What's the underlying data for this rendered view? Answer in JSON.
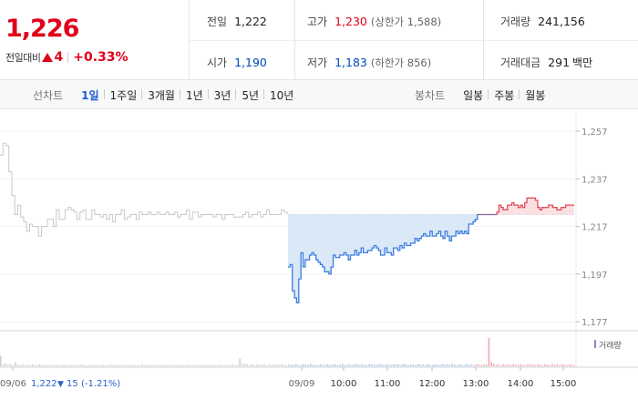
{
  "quote": {
    "price": "1,226",
    "change_label": "전일대비",
    "change_value": "4",
    "change_percent": "+0.33%",
    "prev_label": "전일",
    "prev_value": "1,222",
    "high_label": "고가",
    "high_value": "1,230",
    "upper_limit": "(상한가 1,588)",
    "volume_label": "거래량",
    "volume_value": "241,156",
    "open_label": "시가",
    "open_value": "1,190",
    "low_label": "저가",
    "low_value": "1,183",
    "lower_limit": "(하한가 856)",
    "amount_label": "거래대금",
    "amount_value": "291",
    "amount_unit": "백만",
    "colors": {
      "up": "#e0001b",
      "down": "#0049b7"
    }
  },
  "period_tabs": {
    "label": "선차트",
    "items": [
      "1일",
      "1주일",
      "3개월",
      "1년",
      "3년",
      "5년",
      "10년"
    ],
    "selected": "1일"
  },
  "candle_tabs": {
    "label": "봉차트",
    "items": [
      "일봉",
      "주봉",
      "월봉"
    ]
  },
  "chart_data": {
    "type": "line",
    "y_ticks": [
      "1,257",
      "1,237",
      "1,217",
      "1,197",
      "1,177"
    ],
    "y_tick_values": [
      1257,
      1237,
      1217,
      1197,
      1177
    ],
    "ylim": [
      1174,
      1262
    ],
    "reference_price": 1222,
    "x_labels": [
      "09/06",
      "09/09",
      "10:00",
      "11:00",
      "12:00",
      "13:00",
      "14:00",
      "15:00"
    ],
    "prev_day_note": {
      "date": "09/06",
      "close": "1,222",
      "arrow": "▼",
      "change": "15",
      "percent": "(-1.21%)"
    },
    "volume_legend": "거래량",
    "series": [
      {
        "period": "09/06",
        "values": [
          1247,
          1252,
          1251,
          1240,
          1230,
          1222,
          1226,
          1221,
          1219,
          1215,
          1218,
          1217,
          1217,
          1213,
          1217,
          1217,
          1220,
          1220,
          1217,
          1224,
          1220,
          1220,
          1224,
          1225,
          1224,
          1223,
          1220,
          1223,
          1224,
          1220,
          1220,
          1224,
          1222,
          1222,
          1221,
          1222,
          1220,
          1222,
          1219,
          1222,
          1222,
          1224,
          1220,
          1221,
          1222,
          1222,
          1220,
          1223,
          1222,
          1222,
          1223,
          1222,
          1222,
          1223,
          1222,
          1222,
          1223,
          1222,
          1222,
          1223,
          1221,
          1222,
          1222,
          1224,
          1220,
          1223,
          1223,
          1221,
          1222,
          1222,
          1222,
          1222,
          1221,
          1222,
          1222,
          1220,
          1222,
          1222,
          1222,
          1221,
          1221,
          1221,
          1222,
          1223,
          1221,
          1222,
          1222,
          1223,
          1221,
          1222,
          1224,
          1222,
          1222,
          1222,
          1222,
          1224,
          1223,
          1222
        ]
      },
      {
        "period": "09/09",
        "values": [
          1200,
          1201,
          1190,
          1187,
          1185,
          1195,
          1206,
          1200,
          1203,
          1203,
          1205,
          1206,
          1205,
          1203,
          1202,
          1201,
          1200,
          1198,
          1198,
          1197,
          1200,
          1205,
          1204,
          1204,
          1205,
          1205,
          1206,
          1205,
          1203,
          1205,
          1205,
          1207,
          1205,
          1206,
          1208,
          1206,
          1206,
          1207,
          1207,
          1208,
          1209,
          1208,
          1207,
          1205,
          1205,
          1208,
          1206,
          1206,
          1205,
          1208,
          1208,
          1207,
          1209,
          1208,
          1210,
          1209,
          1209,
          1210,
          1210,
          1212,
          1211,
          1212,
          1213,
          1214,
          1213,
          1213,
          1215,
          1213,
          1213,
          1214,
          1215,
          1213,
          1212,
          1215,
          1213,
          1211,
          1213,
          1213,
          1215,
          1214,
          1215,
          1214,
          1215,
          1214,
          1218,
          1218,
          1219,
          1220,
          1222,
          1222,
          1222,
          1222,
          1222,
          1222,
          1222,
          1222,
          1222,
          1223,
          1226,
          1225,
          1224,
          1224,
          1226,
          1226,
          1227,
          1226,
          1226,
          1225,
          1226,
          1225,
          1227,
          1229,
          1229,
          1229,
          1229,
          1228,
          1225,
          1224,
          1225,
          1225,
          1225,
          1226,
          1226,
          1225,
          1225,
          1224,
          1224,
          1225,
          1225,
          1226,
          1226,
          1226,
          1226,
          1226
        ]
      }
    ],
    "volume": [
      30,
      5,
      8,
      4,
      6,
      3,
      12,
      4,
      3,
      5,
      2,
      4,
      3,
      6,
      2,
      3,
      5,
      2,
      3,
      4,
      2,
      3,
      2,
      4,
      3,
      2,
      5,
      3,
      2,
      3,
      4,
      2,
      3,
      5,
      2,
      3,
      2,
      4,
      3,
      2,
      3,
      2,
      4,
      2,
      3,
      5,
      2,
      3,
      4,
      2,
      3,
      2,
      3,
      4,
      2,
      3,
      2,
      3,
      5,
      2,
      3,
      4,
      2,
      3,
      2,
      3,
      4,
      2,
      3,
      2,
      3,
      4,
      2,
      3,
      5,
      2,
      3,
      4,
      2,
      3,
      2,
      3,
      4,
      2,
      3,
      2,
      3,
      4,
      2,
      3,
      4,
      2,
      3,
      2,
      3,
      4,
      2,
      3,
      22,
      6,
      8,
      5,
      4,
      6,
      3,
      5,
      4,
      3,
      6,
      2,
      4,
      3,
      5,
      4,
      3,
      6,
      4,
      3,
      5,
      4,
      3,
      6,
      2,
      3,
      5,
      4,
      3,
      6,
      4,
      3,
      2,
      5,
      3,
      4,
      6,
      3,
      4,
      5,
      3,
      4,
      6,
      3,
      4,
      5,
      3,
      4,
      6,
      3,
      5,
      4,
      3,
      6,
      5,
      4,
      3,
      6,
      4,
      3,
      5,
      4,
      3,
      6,
      4,
      5,
      3,
      6,
      4,
      3,
      5,
      4,
      3,
      6,
      4,
      5,
      3,
      6,
      4,
      3,
      5,
      4,
      3,
      6,
      4,
      5,
      3,
      6,
      4,
      3,
      5,
      4,
      3,
      6,
      4,
      5,
      3,
      6,
      4,
      3,
      5,
      4,
      80,
      12,
      6,
      4,
      5,
      3,
      6,
      4,
      5,
      3,
      6,
      4,
      3,
      5,
      4,
      3,
      6,
      4,
      5,
      3,
      6,
      4,
      3,
      5,
      4,
      3,
      6,
      4,
      5,
      3,
      6,
      4,
      3,
      5,
      4,
      3
    ]
  }
}
